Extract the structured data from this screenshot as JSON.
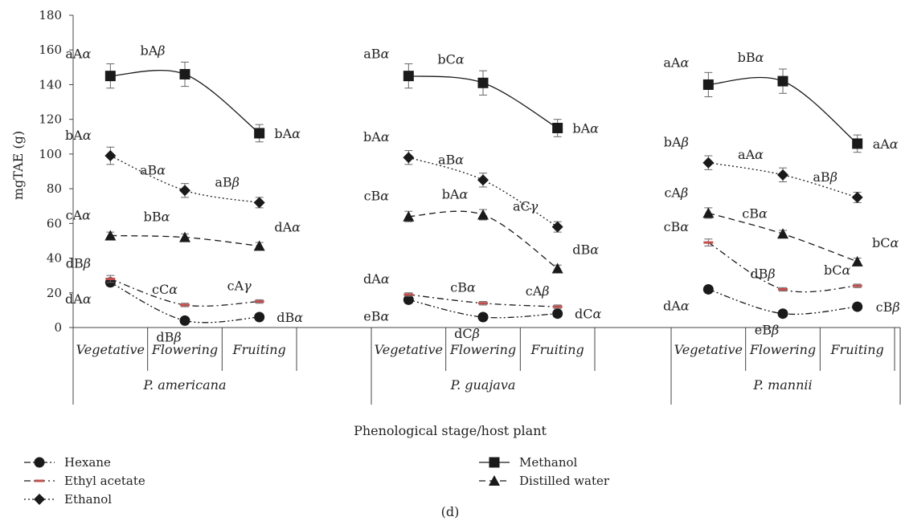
{
  "chart_data": {
    "type": "line",
    "ylabel": "mgTAE (g)",
    "xlabel": "Phenological stage/host plant",
    "caption": "(d)",
    "ylim": [
      0,
      180
    ],
    "yticks": [
      0,
      20,
      40,
      60,
      80,
      100,
      120,
      140,
      160,
      180
    ],
    "groups": [
      {
        "name": "P. americana",
        "stages": [
          "Vegetative",
          "Flowering",
          "Fruiting"
        ]
      },
      {
        "name": "P. guajava",
        "stages": [
          "Vegetative",
          "Flowering",
          "Fruiting"
        ]
      },
      {
        "name": "P. mannii",
        "stages": [
          "Vegetative",
          "Flowering",
          "Fruiting"
        ]
      }
    ],
    "series": [
      {
        "name": "Hexane",
        "marker": "circle",
        "dash": "dashdotdot",
        "values": [
          [
            26,
            4,
            6
          ],
          [
            16,
            6,
            8
          ],
          [
            22,
            8,
            12
          ]
        ],
        "errors": [
          [
            2,
            1,
            1
          ],
          [
            2,
            1,
            1
          ],
          [
            1,
            1,
            2
          ]
        ],
        "labels": [
          [
            "dAα",
            "dBβ",
            "dBα"
          ],
          [
            "eBα",
            "dCβ",
            "dCα"
          ],
          [
            "dAα",
            "eBβ",
            "cBβ"
          ]
        ]
      },
      {
        "name": "Ethyl acetate",
        "marker": "dash",
        "dash": "dashdot",
        "color": "#c0504d",
        "values": [
          [
            28,
            13,
            15
          ],
          [
            19,
            14,
            12
          ],
          [
            49,
            22,
            24
          ]
        ],
        "errors": [
          [
            2,
            1,
            1
          ],
          [
            1,
            1,
            1
          ],
          [
            2,
            1,
            1
          ]
        ],
        "labels": [
          [
            "dBβ",
            "cCα",
            "cAγ"
          ],
          [
            "dAα",
            "cBα",
            "cAβ"
          ],
          [
            "cBα",
            "dBβ",
            "bCα"
          ]
        ]
      },
      {
        "name": "Ethanol",
        "marker": "diamond",
        "dash": "dotted",
        "values": [
          [
            99,
            79,
            72
          ],
          [
            98,
            85,
            58
          ],
          [
            95,
            88,
            75
          ]
        ],
        "errors": [
          [
            5,
            4,
            3
          ],
          [
            4,
            4,
            3
          ],
          [
            4,
            4,
            3
          ]
        ],
        "labels": [
          [
            "bAα",
            "aBα",
            "aBβ"
          ],
          [
            "bAα",
            "aBα",
            "aCγ"
          ],
          [
            "bAβ",
            "aAα",
            "aBβ"
          ]
        ]
      },
      {
        "name": "Methanol",
        "marker": "square",
        "dash": "solid",
        "values": [
          [
            145,
            146,
            112
          ],
          [
            145,
            141,
            115
          ],
          [
            140,
            142,
            106
          ]
        ],
        "errors": [
          [
            7,
            7,
            5
          ],
          [
            7,
            7,
            5
          ],
          [
            7,
            7,
            5
          ]
        ],
        "labels": [
          [
            "aAα",
            "bAβ",
            "bAα"
          ],
          [
            "aBα",
            "bCα",
            "bAα"
          ],
          [
            "aAα",
            "bBα",
            "aAα"
          ]
        ]
      },
      {
        "name": "Distilled water",
        "marker": "triangle",
        "dash": "dashed",
        "values": [
          [
            53,
            52,
            47
          ],
          [
            64,
            65,
            34
          ],
          [
            66,
            54,
            38
          ]
        ],
        "errors": [
          [
            2,
            2,
            2
          ],
          [
            3,
            3,
            2
          ],
          [
            3,
            2,
            2
          ]
        ],
        "labels": [
          [
            "cAα",
            "bBα",
            "dAα"
          ],
          [
            "cBα",
            "bAα",
            "dBα"
          ],
          [
            "cAβ",
            "cBα",
            "bCα"
          ]
        ]
      }
    ],
    "legend": {
      "position": "bottom",
      "left": [
        "Hexane",
        "Ethyl acetate",
        "Ethanol"
      ],
      "right": [
        "Methanol",
        "Distilled water"
      ]
    }
  }
}
